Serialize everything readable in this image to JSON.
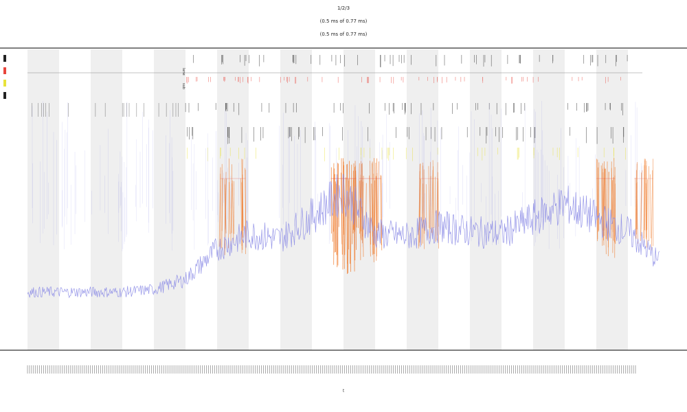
{
  "page": {
    "title_lines": [
      "1/2/3",
      "(0.5 ms of 0.77 ms)",
      "(0.5 ms of 0.77 ms)"
    ],
    "x_axis_label": "t"
  },
  "chart_data": {
    "type": "line",
    "title": "1/2/3",
    "subtitle": "(0.5 ms of 0.77 ms)",
    "xlabel": "t",
    "ylabel": "",
    "grid": false,
    "legend_placement": "top-left",
    "legend": [
      "—",
      "—",
      "—",
      "—"
    ],
    "row_labels": [
      "lane",
      "sub"
    ],
    "x_range": [
      0,
      1000
    ],
    "y_range": [
      0,
      100
    ],
    "shaded_bands": [
      [
        0,
        50
      ],
      [
        100,
        150
      ],
      [
        200,
        250
      ],
      [
        300,
        350
      ],
      [
        400,
        450
      ],
      [
        500,
        550
      ],
      [
        600,
        650
      ],
      [
        700,
        750
      ],
      [
        800,
        850
      ],
      [
        900,
        950
      ]
    ],
    "colors": {
      "series": "#8a8ae6",
      "band": "#efefef",
      "tick_red": "#e8453c",
      "tick_dark": "#222222",
      "tick_yellow": "#e8e23a",
      "heat": "#f07a2a",
      "axis": "#333333"
    },
    "series": [
      {
        "name": "",
        "x": [
          0,
          50,
          100,
          150,
          200,
          250,
          300,
          350,
          400,
          450,
          500,
          550,
          600,
          650,
          700,
          750,
          800,
          850,
          900,
          950,
          1000
        ],
        "values": [
          4,
          4,
          4,
          4,
          5,
          9,
          21,
          27,
          25,
          34,
          44,
          27,
          26,
          30,
          28,
          27,
          33,
          39,
          33,
          28,
          16
        ]
      }
    ],
    "event_regions": [
      {
        "x": [
          305,
          345
        ],
        "intensity": 0.6
      },
      {
        "x": [
          480,
          520
        ],
        "intensity": 1.0
      },
      {
        "x": [
          525,
          560
        ],
        "intensity": 0.8
      },
      {
        "x": [
          620,
          650
        ],
        "intensity": 0.5
      },
      {
        "x": [
          900,
          930
        ],
        "intensity": 0.7
      },
      {
        "x": [
          960,
          990
        ],
        "intensity": 0.5
      }
    ],
    "tick_count_x": 300
  }
}
